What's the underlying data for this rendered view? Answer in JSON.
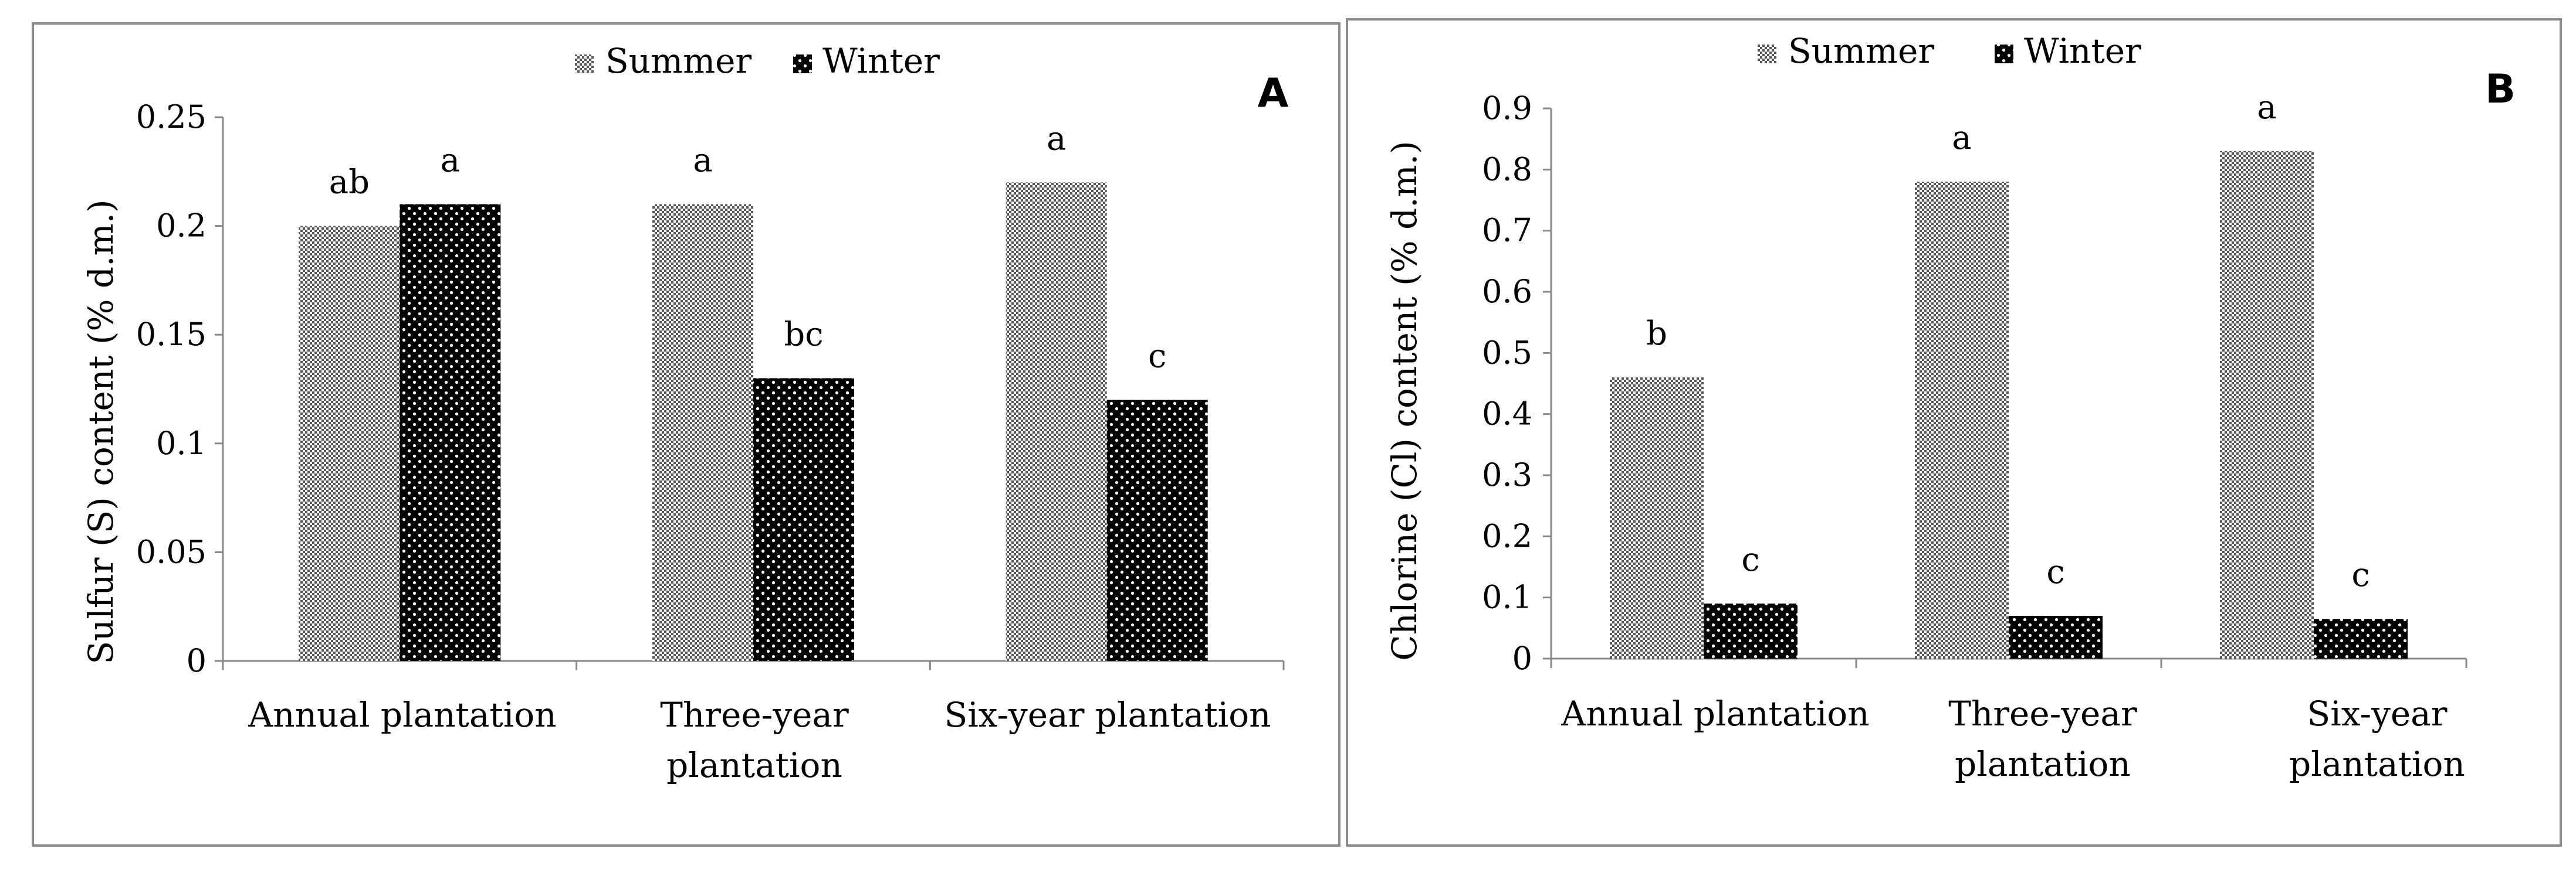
{
  "chart_data": [
    {
      "type": "bar",
      "panel_letter": "A",
      "categories": [
        [
          "Annual plantation"
        ],
        [
          "Three-year",
          "plantation"
        ],
        [
          "Six-year plantation"
        ]
      ],
      "series": [
        {
          "name": "Summer",
          "values": [
            0.2,
            0.21,
            0.22
          ],
          "letters": [
            "ab",
            "a",
            "a"
          ]
        },
        {
          "name": "Winter",
          "values": [
            0.21,
            0.13,
            0.12
          ],
          "letters": [
            "a",
            "bc",
            "c"
          ]
        }
      ],
      "ylabel": "Sulfur (S) content (% d.m.)",
      "xlabel": "",
      "ylim": [
        0,
        0.25
      ],
      "yticks": [
        "0",
        "0.05",
        "0.1",
        "0.15",
        "0.2",
        "0.25"
      ],
      "legend_position": "top-center",
      "grid": false
    },
    {
      "type": "bar",
      "panel_letter": "B",
      "categories": [
        [
          "Annual plantation"
        ],
        [
          "Three-year",
          "plantation"
        ],
        [
          "Six-year",
          "plantation"
        ]
      ],
      "series": [
        {
          "name": "Summer",
          "values": [
            0.46,
            0.78,
            0.83
          ],
          "letters": [
            "b",
            "a",
            "a"
          ]
        },
        {
          "name": "Winter",
          "values": [
            0.09,
            0.07,
            0.065
          ],
          "letters": [
            "c",
            "c",
            "c"
          ]
        }
      ],
      "ylabel": "Chlorine (Cl) content (% d.m.)",
      "xlabel": "",
      "ylim": [
        0,
        0.9
      ],
      "yticks": [
        "0",
        "0.1",
        "0.2",
        "0.3",
        "0.4",
        "0.5",
        "0.6",
        "0.7",
        "0.8",
        "0.9"
      ],
      "legend_position": "top-center",
      "grid": false
    }
  ]
}
